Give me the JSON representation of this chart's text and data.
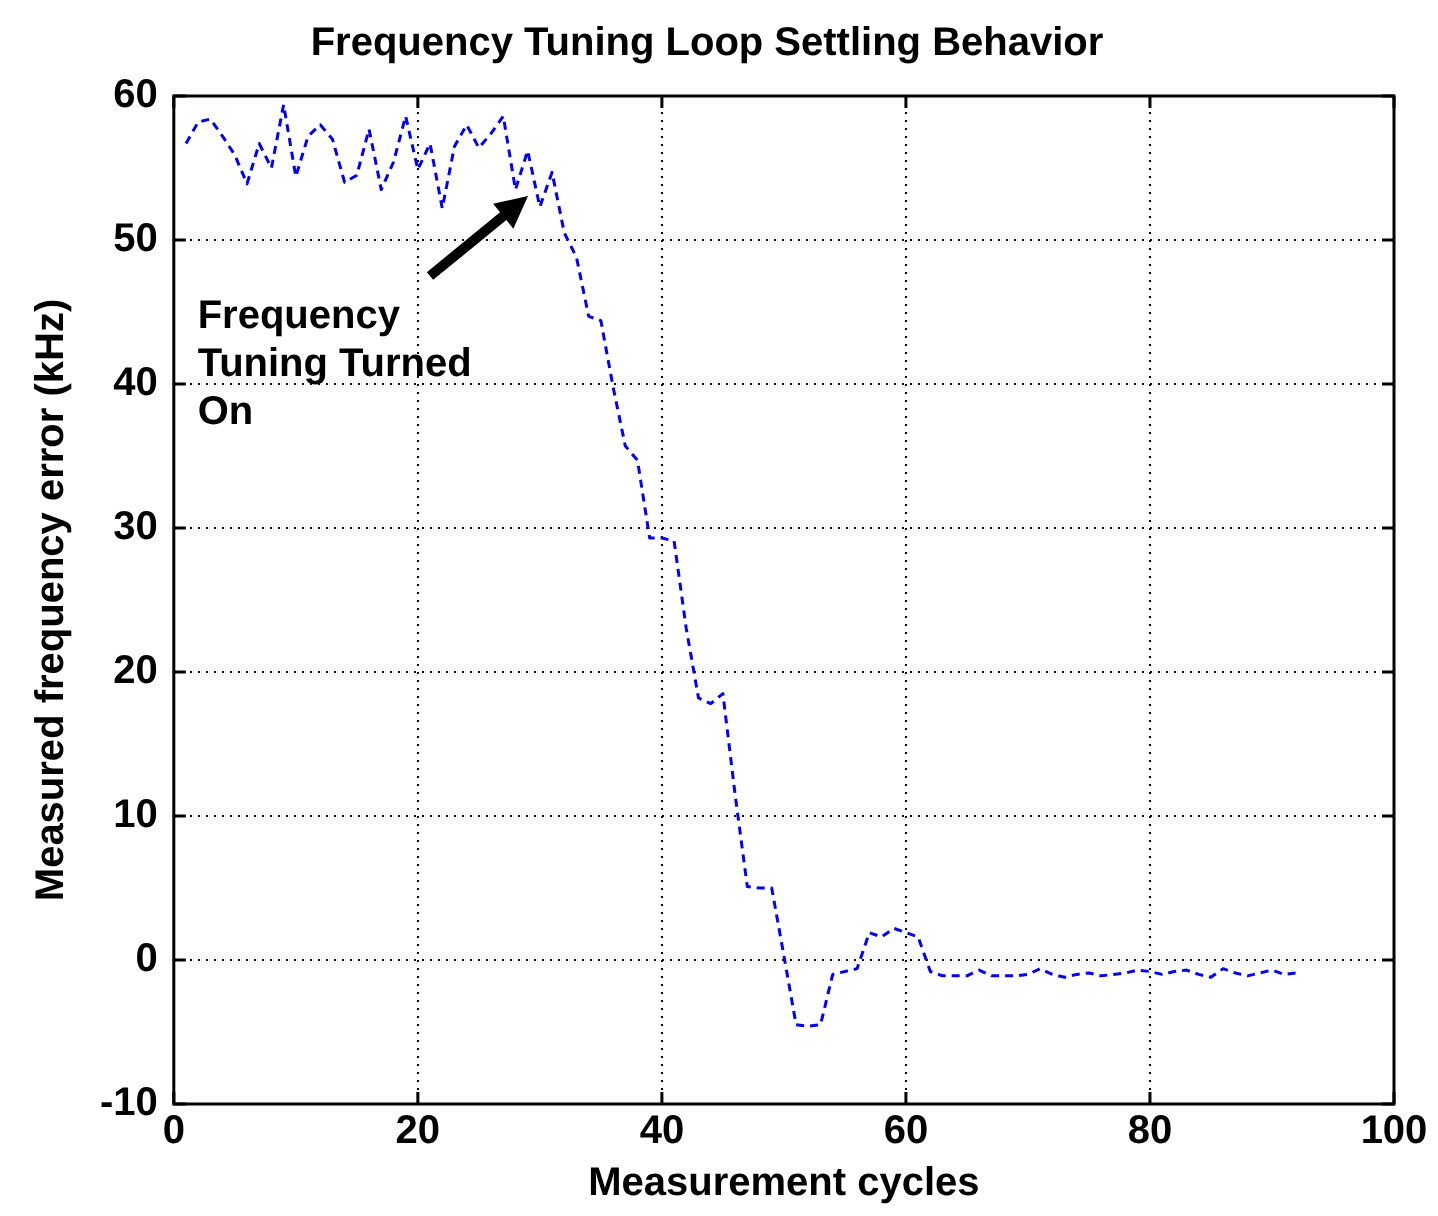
{
  "chart_data": {
    "type": "line",
    "title": "Frequency Tuning Loop Settling Behavior",
    "xlabel": "Measurement cycles",
    "ylabel": "Measured frequency error (kHz)",
    "x": [
      1,
      2,
      3,
      4,
      5,
      6,
      7,
      8,
      9,
      10,
      11,
      12,
      13,
      14,
      15,
      16,
      17,
      18,
      19,
      20,
      21,
      22,
      23,
      24,
      25,
      26,
      27,
      28,
      29,
      30,
      31,
      32,
      33,
      34,
      35,
      36,
      37,
      38,
      39,
      40,
      41,
      42,
      43,
      44,
      45,
      46,
      47,
      48,
      49,
      50,
      51,
      52,
      53,
      54,
      55,
      56,
      57,
      58,
      59,
      60,
      61,
      62,
      63,
      64,
      65,
      66,
      67,
      68,
      69,
      70,
      71,
      72,
      73,
      74,
      75,
      76,
      77,
      78,
      79,
      80,
      81,
      82,
      83,
      84,
      85,
      86,
      87,
      88,
      89,
      90,
      91,
      92
    ],
    "series": [
      {
        "color": "#0000ff",
        "line_style": "dashed",
        "values": [
          56.7,
          58.2,
          58.4,
          57.2,
          55.9,
          53.9,
          56.7,
          55.0,
          59.4,
          54.4,
          57.2,
          58.0,
          57.0,
          54.0,
          54.5,
          57.7,
          53.5,
          55.4,
          58.6,
          54.9,
          56.7,
          52.2,
          56.5,
          58.0,
          56.4,
          57.4,
          58.6,
          53.5,
          56.2,
          52.3,
          54.7,
          50.5,
          48.8,
          44.7,
          44.4,
          39.8,
          35.7,
          34.7,
          29.3,
          29.3,
          29.1,
          23.0,
          18.2,
          17.8,
          18.5,
          11.5,
          5.1,
          5.0,
          5.0,
          0.3,
          -4.5,
          -4.6,
          -4.5,
          -1.0,
          -0.8,
          -0.6,
          1.9,
          1.6,
          2.2,
          1.9,
          1.6,
          -0.8,
          -1.1,
          -1.1,
          -1.1,
          -0.7,
          -1.1,
          -1.1,
          -1.1,
          -1.0,
          -0.6,
          -1.0,
          -1.2,
          -1.0,
          -0.9,
          -1.1,
          -1.0,
          -0.9,
          -0.7,
          -0.8,
          -1.0,
          -0.8,
          -0.7,
          -1.0,
          -1.2,
          -0.6,
          -0.9,
          -1.1,
          -0.9,
          -0.7,
          -1.0,
          -0.9
        ]
      }
    ],
    "xlim": [
      0,
      100
    ],
    "xticks": [
      0,
      20,
      40,
      60,
      80,
      100
    ],
    "ylim": [
      -10,
      60
    ],
    "yticks": [
      -10,
      0,
      10,
      20,
      30,
      40,
      50,
      60
    ],
    "grid": true,
    "legend": false,
    "marker": "none",
    "annotations": [
      {
        "text": "Frequency\nTuning Turned\nOn",
        "x": 29,
        "y": 53
      }
    ]
  }
}
